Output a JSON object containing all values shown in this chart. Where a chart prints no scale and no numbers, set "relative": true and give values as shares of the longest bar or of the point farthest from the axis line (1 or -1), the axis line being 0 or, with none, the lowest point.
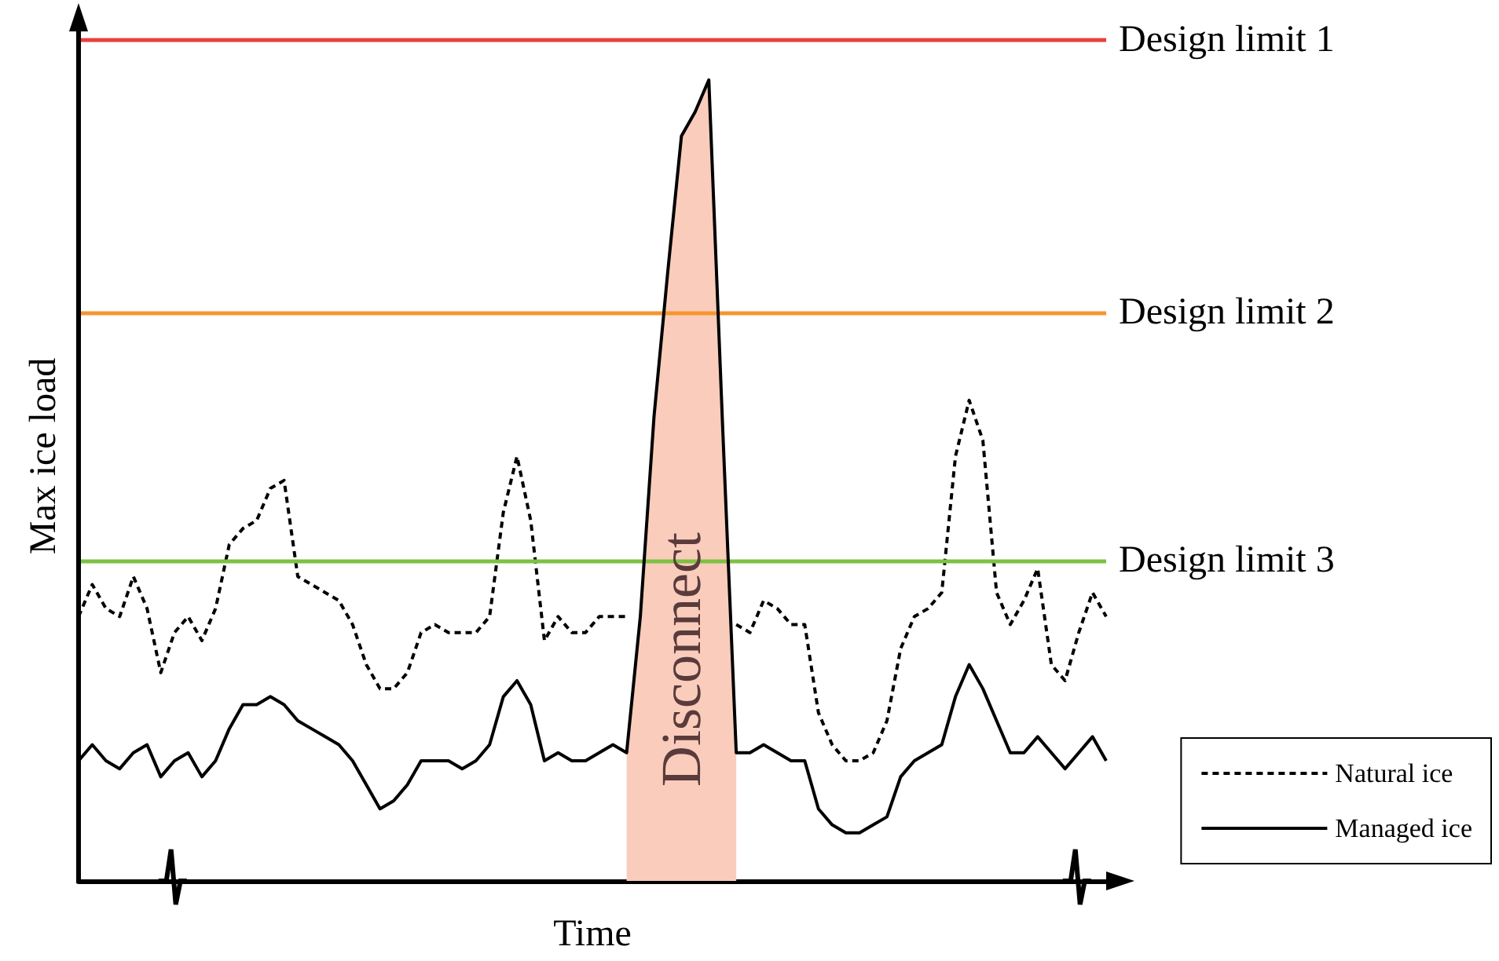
{
  "chart_data": {
    "type": "line",
    "relative": true,
    "xlabel": "Time",
    "ylabel": "Max ice load",
    "legend": "bottom right",
    "grid": false,
    "categories": [
      null,
      null,
      null,
      null,
      null,
      null,
      null,
      null,
      null,
      null,
      null,
      null,
      null,
      null,
      null,
      null,
      null,
      null,
      null,
      null,
      null,
      null,
      null,
      null,
      null,
      null,
      null,
      null,
      null,
      null,
      null,
      null,
      null,
      null,
      null,
      null,
      null,
      null,
      null,
      null,
      null,
      null,
      null,
      null,
      null,
      null,
      null,
      null,
      null,
      null,
      null,
      null,
      null,
      null,
      null,
      null,
      null,
      null,
      null,
      null,
      null,
      null,
      null,
      null,
      null,
      null,
      null,
      null,
      null,
      null,
      null,
      null,
      null,
      null,
      null,
      null
    ],
    "series": [
      {
        "type": "area",
        "color": "#f9ccbc",
        "values": [
          null,
          null,
          null,
          null,
          null,
          null,
          null,
          null,
          null,
          null,
          null,
          null,
          null,
          null,
          null,
          null,
          null,
          null,
          null,
          null,
          null,
          null,
          null,
          null,
          null,
          null,
          null,
          null,
          null,
          null,
          null,
          null,
          null,
          null,
          null,
          null,
          null,
          null,
          null,
          null,
          0.16,
          0.33,
          0.58,
          0.76,
          0.93,
          0.96,
          1,
          0.57,
          0.16,
          null,
          null,
          null,
          null,
          null,
          null,
          null,
          null,
          null,
          null,
          null,
          null,
          null,
          null,
          null,
          null,
          null,
          null,
          null,
          null,
          null,
          null,
          null,
          null,
          null,
          null,
          null
        ]
      },
      {
        "name": "Natural ice",
        "color": "#000000",
        "line_style": "dotted",
        "values": [
          0.33,
          0.37,
          0.34,
          0.33,
          0.38,
          0.34,
          0.26,
          0.31,
          0.33,
          0.3,
          0.34,
          0.42,
          0.44,
          0.45,
          0.49,
          0.5,
          0.38,
          0.37,
          0.36,
          0.35,
          0.32,
          0.27,
          0.24,
          0.24,
          0.26,
          0.31,
          0.32,
          0.31,
          0.31,
          0.31,
          0.33,
          0.46,
          0.53,
          0.45,
          0.3,
          0.33,
          0.31,
          0.31,
          0.33,
          0.33,
          0.33,
          null,
          null,
          null,
          null,
          null,
          null,
          null,
          0.32,
          0.31,
          0.35,
          0.34,
          0.32,
          0.32,
          0.21,
          0.17,
          0.15,
          0.15,
          0.16,
          0.2,
          0.29,
          0.33,
          0.34,
          0.36,
          0.53,
          0.6,
          0.55,
          0.36,
          0.32,
          0.35,
          0.39,
          0.27,
          0.25,
          0.31,
          0.36,
          0.33
        ]
      },
      {
        "name": "Managed ice",
        "color": "#000000",
        "line_style": "solid",
        "values": [
          0.15,
          0.17,
          0.15,
          0.14,
          0.16,
          0.17,
          0.13,
          0.15,
          0.16,
          0.13,
          0.15,
          0.19,
          0.22,
          0.22,
          0.23,
          0.22,
          0.2,
          0.19,
          0.18,
          0.17,
          0.15,
          0.12,
          0.09,
          0.1,
          0.12,
          0.15,
          0.15,
          0.15,
          0.14,
          0.15,
          0.17,
          0.23,
          0.25,
          0.22,
          0.15,
          0.16,
          0.15,
          0.15,
          0.16,
          0.17,
          0.16,
          0.33,
          0.58,
          0.76,
          0.93,
          0.96,
          1,
          0.57,
          0.16,
          0.16,
          0.17,
          0.16,
          0.15,
          0.15,
          0.09,
          0.07,
          0.06,
          0.06,
          0.07,
          0.08,
          0.13,
          0.15,
          0.16,
          0.17,
          0.23,
          0.27,
          0.24,
          0.2,
          0.16,
          0.16,
          0.18,
          0.16,
          0.14,
          0.16,
          0.18,
          0.15
        ]
      }
    ],
    "ref_lines": [
      {
        "axis": "y",
        "value": 1.05,
        "label": "Design limit 1",
        "color": "#e8413c"
      },
      {
        "axis": "y",
        "value": 0.71,
        "label": "Design limit 2",
        "color": "#f7952f"
      },
      {
        "axis": "y",
        "value": 0.4,
        "label": "Design limit 3",
        "color": "#7cc143"
      }
    ],
    "annotations": [
      "Disconnect"
    ]
  }
}
